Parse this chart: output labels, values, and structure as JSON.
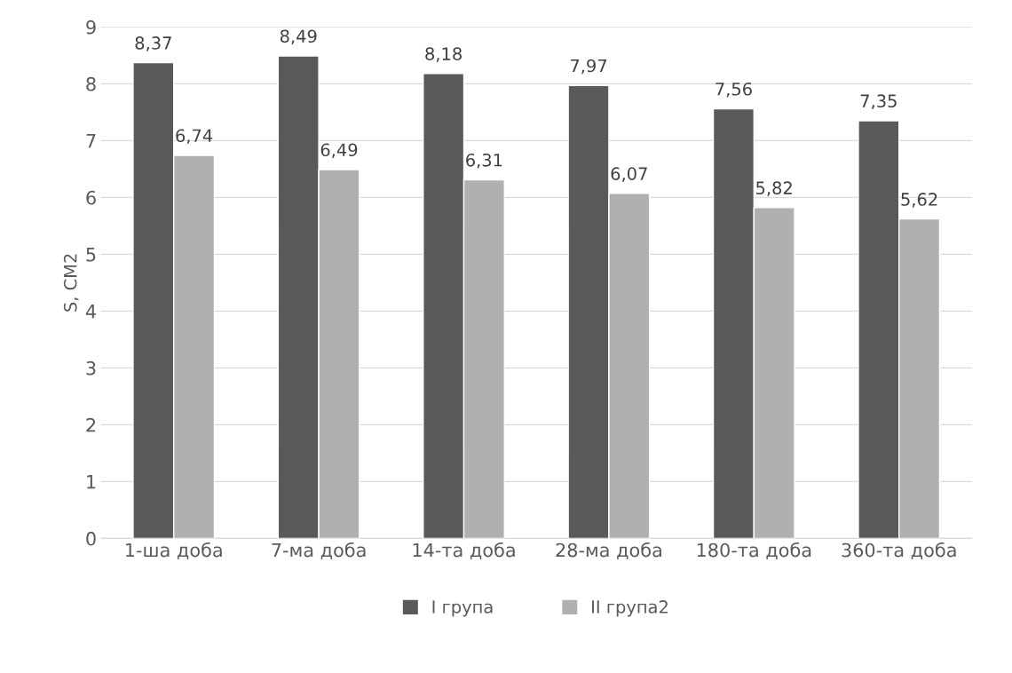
{
  "chart_data": {
    "type": "bar",
    "ylabel": "S, СМ2",
    "categories": [
      "1-ша доба",
      "7-ма доба",
      "14-та доба",
      "28-ма доба",
      "180-та доба",
      "360-та доба"
    ],
    "series": [
      {
        "name": "I група",
        "color": "#595959",
        "values": [
          8.37,
          8.49,
          8.18,
          7.97,
          7.56,
          7.35
        ],
        "value_labels": [
          "8,37",
          "8,49",
          "8,18",
          "7,97",
          "7,56",
          "7,35"
        ]
      },
      {
        "name": "II група2",
        "color": "#b0b0b0",
        "values": [
          6.74,
          6.49,
          6.31,
          6.07,
          5.82,
          5.62
        ],
        "value_labels": [
          "6,74",
          "6,49",
          "6,31",
          "6,07",
          "5,82",
          "5,62"
        ]
      }
    ],
    "ylim": [
      0,
      9
    ],
    "yticks": [
      0,
      1,
      2,
      3,
      4,
      5,
      6,
      7,
      8,
      9
    ],
    "grid": "y",
    "legend": "bottom"
  }
}
